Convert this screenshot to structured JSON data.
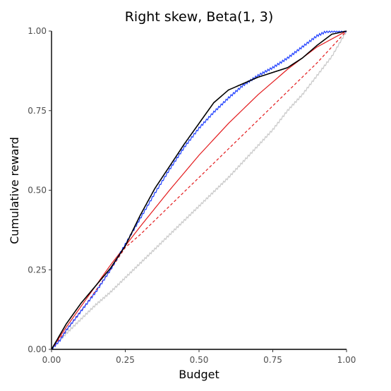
{
  "chart_data": {
    "type": "line",
    "title": "Right skew, Beta(1, 3)",
    "xlabel": "Budget",
    "ylabel": "Cumulative reward",
    "xlim": [
      0,
      1
    ],
    "ylim": [
      0,
      1
    ],
    "grid": false,
    "legend": "none",
    "x_ticks": [
      "0.00",
      "0.25",
      "0.50",
      "0.75",
      "1.00"
    ],
    "y_ticks": [
      "0.00",
      "0.25",
      "0.50",
      "0.75",
      "1.00"
    ],
    "x_tick_values": [
      0,
      0.25,
      0.5,
      0.75,
      1
    ],
    "y_tick_values": [
      0,
      0.25,
      0.5,
      0.75,
      1
    ],
    "series": [
      {
        "color": "#c8c8c8",
        "dash": "none",
        "jitter": true,
        "x": [
          0,
          0.05,
          0.1,
          0.15,
          0.2,
          0.25,
          0.3,
          0.35,
          0.4,
          0.45,
          0.5,
          0.55,
          0.6,
          0.65,
          0.7,
          0.75,
          0.8,
          0.85,
          0.9,
          0.95,
          1
        ],
        "y": [
          0,
          0.05,
          0.095,
          0.14,
          0.18,
          0.225,
          0.27,
          0.315,
          0.36,
          0.405,
          0.45,
          0.495,
          0.54,
          0.59,
          0.64,
          0.69,
          0.75,
          0.8,
          0.86,
          0.92,
          1
        ]
      },
      {
        "color": "#e31a1c",
        "dash": "4,3",
        "jitter": false,
        "x": [
          0,
          0.1,
          0.2,
          0.25,
          0.3,
          0.4,
          0.5,
          0.6,
          0.7,
          0.8,
          0.9,
          1
        ],
        "y": [
          0,
          0.12,
          0.25,
          0.32,
          0.36,
          0.45,
          0.54,
          0.63,
          0.72,
          0.81,
          0.9,
          1
        ]
      },
      {
        "color": "#e31a1c",
        "dash": "none",
        "jitter": false,
        "x": [
          0,
          0.05,
          0.1,
          0.15,
          0.2,
          0.25,
          0.3,
          0.4,
          0.5,
          0.6,
          0.7,
          0.8,
          0.9,
          1
        ],
        "y": [
          0,
          0.07,
          0.135,
          0.2,
          0.265,
          0.325,
          0.385,
          0.5,
          0.61,
          0.71,
          0.8,
          0.88,
          0.95,
          1
        ]
      },
      {
        "color": "#1f3fff",
        "dash": "none",
        "jitter": true,
        "x": [
          0,
          0.03,
          0.05,
          0.1,
          0.15,
          0.2,
          0.25,
          0.3,
          0.35,
          0.4,
          0.45,
          0.5,
          0.55,
          0.6,
          0.65,
          0.7,
          0.75,
          0.8,
          0.85,
          0.9,
          0.93,
          0.96,
          1
        ],
        "y": [
          0,
          0.03,
          0.06,
          0.12,
          0.18,
          0.25,
          0.33,
          0.41,
          0.49,
          0.565,
          0.635,
          0.695,
          0.745,
          0.79,
          0.83,
          0.86,
          0.885,
          0.915,
          0.95,
          0.985,
          0.998,
          1,
          1
        ]
      },
      {
        "color": "#000000",
        "dash": "none",
        "jitter": false,
        "x": [
          0,
          0.05,
          0.1,
          0.15,
          0.2,
          0.25,
          0.3,
          0.35,
          0.4,
          0.45,
          0.5,
          0.55,
          0.6,
          0.65,
          0.7,
          0.75,
          0.8,
          0.85,
          0.9,
          0.95,
          1
        ],
        "y": [
          0,
          0.08,
          0.145,
          0.2,
          0.255,
          0.325,
          0.42,
          0.505,
          0.575,
          0.645,
          0.71,
          0.775,
          0.815,
          0.835,
          0.855,
          0.87,
          0.885,
          0.915,
          0.955,
          0.99,
          1
        ]
      }
    ]
  }
}
